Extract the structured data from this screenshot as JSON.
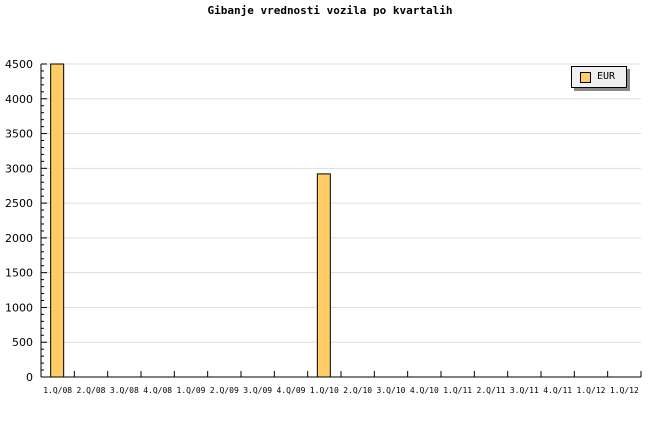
{
  "chart_data": {
    "type": "bar",
    "title": "Gibanje vrednosti vozila po kvartalih",
    "categories": [
      "1.Q/08",
      "2.Q/08",
      "3.Q/08",
      "4.Q/08",
      "1.Q/09",
      "2.Q/09",
      "3.Q/09",
      "4.Q/09",
      "1.Q/10",
      "2.Q/10",
      "3.Q/10",
      "4.Q/10",
      "1.Q/11",
      "2.Q/11",
      "3.Q/11",
      "4.Q/11",
      "1.Q/12",
      "1.Q/12"
    ],
    "series": [
      {
        "name": "EUR",
        "values": [
          4500,
          0,
          0,
          0,
          0,
          0,
          0,
          0,
          2920,
          0,
          0,
          0,
          0,
          0,
          0,
          0,
          0,
          0
        ],
        "color": "#ffcc66"
      }
    ],
    "ylim": [
      0,
      4500
    ],
    "yticks": [
      0,
      500,
      1000,
      1500,
      2000,
      2500,
      3000,
      3500,
      4000,
      4500
    ],
    "grid": true,
    "legend": "top-right"
  }
}
